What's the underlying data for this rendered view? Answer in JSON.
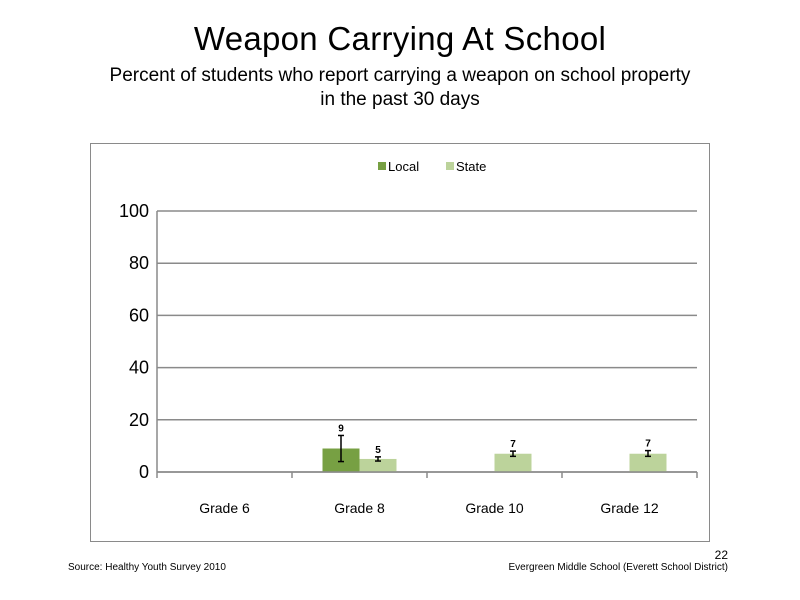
{
  "slide": {
    "title": "Weapon Carrying At School",
    "subtitle": "Percent of students who report carrying a weapon on school property in the past 30 days",
    "page_number": "22",
    "source": "Source: Healthy Youth Survey 2010",
    "school": "Evergreen Middle School (Everett School District)"
  },
  "chart_data": {
    "type": "bar",
    "title": "",
    "xlabel": "",
    "ylabel": "",
    "categories": [
      "Grade 6",
      "Grade 8",
      "Grade 10",
      "Grade 12"
    ],
    "ylim": [
      0,
      100
    ],
    "yticks": [
      0,
      20,
      40,
      60,
      80,
      100
    ],
    "grid": true,
    "legend_position": "top-center",
    "series": [
      {
        "name": "Local",
        "color": "#77a043",
        "values": [
          null,
          9,
          null,
          null
        ],
        "labels": [
          "",
          "9",
          "",
          ""
        ],
        "error": [
          null,
          [
            4,
            14
          ],
          null,
          null
        ]
      },
      {
        "name": "State",
        "color": "#bcd39b",
        "values": [
          null,
          5,
          7,
          7
        ],
        "labels": [
          "",
          "5",
          "7",
          "7"
        ],
        "error": [
          null,
          [
            4.2,
            5.8
          ],
          [
            6,
            8
          ],
          [
            6,
            8.2
          ]
        ]
      }
    ]
  }
}
